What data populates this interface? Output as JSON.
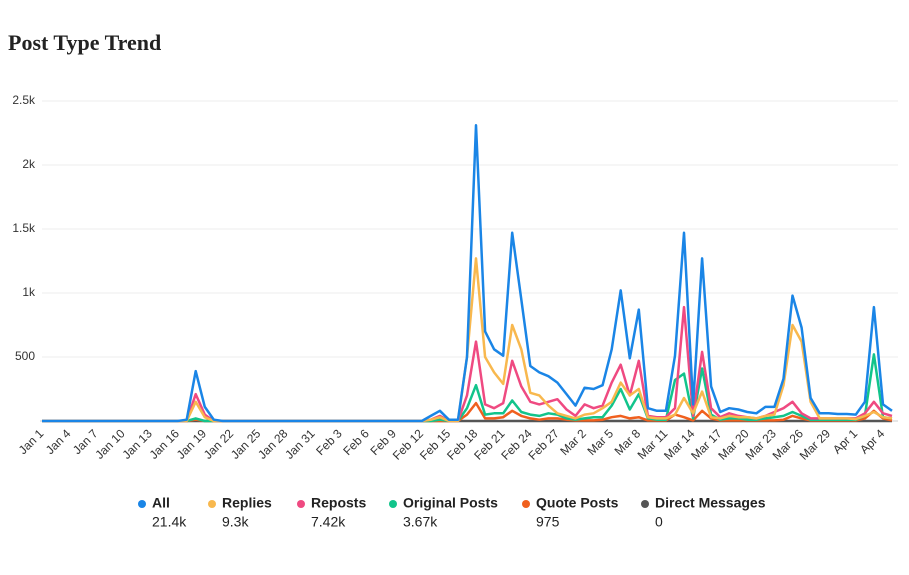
{
  "chart_data": {
    "type": "line",
    "title": "Post Type Trend",
    "categories": [
      "Jan 1",
      null,
      null,
      "Jan 4",
      null,
      null,
      "Jan 7",
      null,
      null,
      "Jan 10",
      null,
      null,
      "Jan 13",
      null,
      null,
      "Jan 16",
      null,
      null,
      "Jan 19",
      null,
      null,
      "Jan 22",
      null,
      null,
      "Jan 25",
      null,
      null,
      "Jan 28",
      null,
      null,
      "Jan 31",
      null,
      null,
      "Feb 3",
      null,
      null,
      "Feb 6",
      null,
      null,
      "Feb 9",
      null,
      null,
      "Feb 12",
      null,
      null,
      "Feb 15",
      null,
      null,
      "Feb 18",
      null,
      null,
      "Feb 21",
      null,
      null,
      "Feb 24",
      null,
      null,
      "Feb 27",
      null,
      null,
      "Mar 2",
      null,
      null,
      "Mar 5",
      null,
      null,
      "Mar 8",
      null,
      null,
      "Mar 11",
      null,
      null,
      "Mar 14",
      null,
      null,
      "Mar 17",
      null,
      null,
      "Mar 20",
      null,
      null,
      "Mar 23",
      null,
      null,
      "Mar 26",
      null,
      null,
      "Mar 29",
      null,
      null,
      "Apr 1",
      null,
      null,
      "Apr 4",
      null
    ],
    "ylim": [
      0,
      2500
    ],
    "yticks": [
      500,
      {
        "value": 1000,
        "label": "1k"
      },
      {
        "value": 1500,
        "label": "1.5k"
      },
      {
        "value": 2000,
        "label": "2k"
      },
      {
        "value": 2500,
        "label": "2.5k"
      }
    ],
    "grid": true,
    "series": [
      {
        "name": "All",
        "color": "#1a85e6",
        "total": 21400,
        "total_label": "21.4k",
        "values": [
          0,
          0,
          0,
          0,
          0,
          0,
          0,
          0,
          0,
          0,
          0,
          0,
          0,
          0,
          0,
          0,
          10,
          390,
          110,
          10,
          0,
          0,
          0,
          0,
          0,
          0,
          0,
          0,
          0,
          0,
          0,
          0,
          0,
          0,
          0,
          0,
          0,
          0,
          0,
          0,
          0,
          0,
          0,
          40,
          80,
          10,
          10,
          500,
          2310,
          700,
          560,
          510,
          1470,
          950,
          430,
          380,
          350,
          300,
          210,
          120,
          260,
          250,
          280,
          560,
          1020,
          490,
          870,
          100,
          80,
          80,
          510,
          1470,
          130,
          1270,
          270,
          70,
          100,
          90,
          70,
          60,
          110,
          110,
          330,
          980,
          730,
          180,
          60,
          60,
          55,
          55,
          50,
          150,
          890,
          130,
          80
        ]
      },
      {
        "name": "Replies",
        "color": "#f8b84e",
        "total": 9300,
        "total_label": "9.3k",
        "values": [
          0,
          0,
          0,
          0,
          0,
          0,
          0,
          0,
          0,
          0,
          0,
          0,
          0,
          0,
          0,
          0,
          0,
          150,
          30,
          0,
          0,
          0,
          0,
          0,
          0,
          0,
          0,
          0,
          0,
          0,
          0,
          0,
          0,
          0,
          0,
          0,
          0,
          0,
          0,
          0,
          0,
          0,
          0,
          10,
          30,
          0,
          0,
          500,
          1270,
          500,
          380,
          290,
          750,
          560,
          220,
          200,
          120,
          60,
          40,
          20,
          50,
          60,
          100,
          150,
          300,
          200,
          250,
          30,
          20,
          20,
          50,
          180,
          60,
          230,
          30,
          20,
          40,
          30,
          30,
          20,
          40,
          50,
          280,
          750,
          620,
          150,
          20,
          20,
          20,
          20,
          15,
          40,
          70,
          30,
          20
        ]
      },
      {
        "name": "Reposts",
        "color": "#ef4a81",
        "total": 7420,
        "total_label": "7.42k",
        "values": [
          0,
          0,
          0,
          0,
          0,
          0,
          0,
          0,
          0,
          0,
          0,
          0,
          0,
          0,
          0,
          0,
          0,
          210,
          50,
          0,
          0,
          0,
          0,
          0,
          0,
          0,
          0,
          0,
          0,
          0,
          0,
          0,
          0,
          0,
          0,
          0,
          0,
          0,
          0,
          0,
          0,
          0,
          0,
          10,
          40,
          0,
          0,
          200,
          620,
          130,
          100,
          140,
          470,
          270,
          150,
          130,
          150,
          170,
          90,
          40,
          130,
          100,
          120,
          300,
          440,
          200,
          470,
          40,
          30,
          30,
          100,
          890,
          40,
          540,
          100,
          30,
          60,
          40,
          30,
          20,
          40,
          70,
          100,
          150,
          60,
          20,
          20,
          20,
          20,
          20,
          20,
          60,
          150,
          60,
          40
        ]
      },
      {
        "name": "Original Posts",
        "color": "#12c48b",
        "total": 3670,
        "total_label": "3.67k",
        "values": [
          0,
          0,
          0,
          0,
          0,
          0,
          0,
          0,
          0,
          0,
          0,
          0,
          0,
          0,
          0,
          0,
          0,
          20,
          0,
          0,
          0,
          0,
          0,
          0,
          0,
          0,
          0,
          0,
          0,
          0,
          0,
          0,
          0,
          0,
          0,
          0,
          0,
          0,
          0,
          0,
          0,
          0,
          0,
          0,
          10,
          0,
          0,
          100,
          280,
          50,
          60,
          60,
          160,
          70,
          50,
          40,
          60,
          50,
          20,
          10,
          20,
          30,
          30,
          120,
          250,
          90,
          210,
          20,
          10,
          10,
          320,
          370,
          20,
          410,
          50,
          10,
          20,
          20,
          10,
          10,
          20,
          30,
          40,
          70,
          40,
          10,
          10,
          10,
          10,
          10,
          10,
          40,
          520,
          30,
          20
        ]
      },
      {
        "name": "Quote Posts",
        "color": "#f0601e",
        "total": 975,
        "values": [
          0,
          0,
          0,
          0,
          0,
          0,
          0,
          0,
          0,
          0,
          0,
          0,
          0,
          0,
          0,
          0,
          0,
          10,
          0,
          0,
          0,
          0,
          0,
          0,
          0,
          0,
          0,
          0,
          0,
          0,
          0,
          0,
          0,
          0,
          0,
          0,
          0,
          0,
          0,
          0,
          0,
          0,
          0,
          0,
          0,
          0,
          0,
          50,
          140,
          20,
          20,
          30,
          80,
          40,
          20,
          10,
          20,
          20,
          10,
          5,
          5,
          5,
          10,
          30,
          40,
          20,
          30,
          5,
          5,
          5,
          50,
          30,
          5,
          80,
          20,
          5,
          5,
          5,
          5,
          5,
          5,
          5,
          10,
          40,
          20,
          5,
          5,
          5,
          5,
          5,
          5,
          20,
          80,
          20,
          5
        ]
      },
      {
        "name": "Direct Messages",
        "color": "#555555",
        "total": 0,
        "values": [
          0,
          0,
          0,
          0,
          0,
          0,
          0,
          0,
          0,
          0,
          0,
          0,
          0,
          0,
          0,
          0,
          0,
          0,
          0,
          0,
          0,
          0,
          0,
          0,
          0,
          0,
          0,
          0,
          0,
          0,
          0,
          0,
          0,
          0,
          0,
          0,
          0,
          0,
          0,
          0,
          0,
          0,
          0,
          0,
          0,
          0,
          0,
          0,
          0,
          0,
          0,
          0,
          0,
          0,
          0,
          0,
          0,
          0,
          0,
          0,
          0,
          0,
          0,
          0,
          0,
          0,
          0,
          0,
          0,
          0,
          0,
          0,
          0,
          0,
          0,
          0,
          0,
          0,
          0,
          0,
          0,
          0,
          0,
          0,
          0,
          0,
          0,
          0,
          0,
          0,
          0,
          0,
          0,
          0,
          0
        ]
      }
    ]
  }
}
